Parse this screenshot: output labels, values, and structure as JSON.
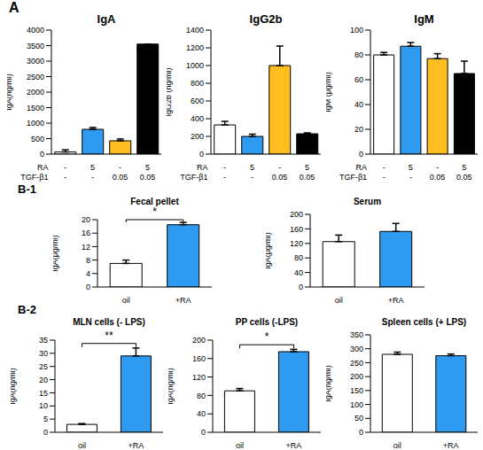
{
  "chart_data": [
    {
      "type": "bar",
      "panel": "A",
      "title": "IgA",
      "y_label": "IgA(ng/ml)",
      "x_rows": [
        {
          "label": "RA",
          "values": [
            "-",
            "5",
            "-",
            "5"
          ]
        },
        {
          "label": "TGF-β1",
          "values": [
            "-",
            "-",
            "0.05",
            "0.05"
          ]
        }
      ],
      "values": [
        70,
        800,
        430,
        3550
      ],
      "errors": [
        70,
        60,
        60,
        0
      ],
      "colors": [
        "#ffffff",
        "#2e9bf0",
        "#ffbe1f",
        "#000000"
      ],
      "ylim": [
        0,
        4000
      ],
      "yticks": [
        0,
        500,
        1000,
        1500,
        2000,
        2500,
        3000,
        3500,
        4000
      ]
    },
    {
      "type": "bar",
      "title": "IgG2b",
      "y_label": "IgG2b (ng/ml)",
      "x_rows": [
        {
          "label": "RA",
          "values": [
            "-",
            "5",
            "-",
            "5"
          ]
        },
        {
          "label": "TGF-β1",
          "values": [
            "-",
            "-",
            "0.05",
            "0.05"
          ]
        }
      ],
      "values": [
        330,
        200,
        1000,
        230
      ],
      "errors": [
        40,
        25,
        220,
        10
      ],
      "colors": [
        "#ffffff",
        "#2e9bf0",
        "#ffbe1f",
        "#000000"
      ],
      "ylim": [
        0,
        1400
      ],
      "yticks": [
        0,
        200,
        400,
        600,
        800,
        1000,
        1200,
        1400
      ]
    },
    {
      "type": "bar",
      "title": "IgM",
      "y_label": "IgM (μg/ml)",
      "x_rows": [
        {
          "label": "RA",
          "values": [
            "-",
            "5",
            "-",
            "5"
          ]
        },
        {
          "label": "TGF-β1",
          "values": [
            "-",
            "-",
            "0.05",
            "0.05"
          ]
        }
      ],
      "values": [
        80,
        87,
        77,
        65
      ],
      "errors": [
        2,
        3,
        4,
        10
      ],
      "colors": [
        "#ffffff",
        "#2e9bf0",
        "#ffbe1f",
        "#000000"
      ],
      "ylim": [
        0,
        100
      ],
      "yticks": [
        0,
        20,
        40,
        60,
        80,
        100
      ]
    },
    {
      "type": "bar",
      "panel": "B-1",
      "title": "Fecal pellet",
      "y_label": "IgA(μg/ml)",
      "categories": [
        "oil",
        "+RA"
      ],
      "values": [
        7,
        18.5
      ],
      "errors": [
        1,
        0.7
      ],
      "colors": [
        "#ffffff",
        "#2e9bf0"
      ],
      "ylim": [
        0,
        20
      ],
      "yticks": [
        0,
        4,
        8,
        12,
        16,
        20
      ],
      "annotations": [
        {
          "text": "*",
          "between": [
            "oil",
            "+RA"
          ]
        }
      ]
    },
    {
      "type": "bar",
      "title": "Serum",
      "y_label": "IgA(μg/ml)",
      "categories": [
        "oil",
        "+RA"
      ],
      "values": [
        125,
        153
      ],
      "errors": [
        18,
        22
      ],
      "colors": [
        "#ffffff",
        "#2e9bf0"
      ],
      "ylim": [
        0,
        200
      ],
      "yticks": [
        0,
        40,
        80,
        120,
        160,
        200
      ]
    },
    {
      "type": "bar",
      "panel": "B-2",
      "title": "MLN cells (- LPS)",
      "y_label": "IgA(ng/ml)",
      "categories": [
        "oil",
        "+RA"
      ],
      "values": [
        3,
        29
      ],
      "errors": [
        0.3,
        3
      ],
      "colors": [
        "#ffffff",
        "#2e9bf0"
      ],
      "ylim": [
        0,
        35
      ],
      "yticks": [
        0,
        5,
        10,
        15,
        20,
        25,
        30,
        35
      ],
      "annotations": [
        {
          "text": "**",
          "between": [
            "oil",
            "+RA"
          ]
        }
      ]
    },
    {
      "type": "bar",
      "title": "PP cells (-LPS)",
      "y_label": "IgA(ng/ml)",
      "categories": [
        "oil",
        "+RA"
      ],
      "values": [
        90,
        175
      ],
      "errors": [
        5,
        5
      ],
      "colors": [
        "#ffffff",
        "#2e9bf0"
      ],
      "ylim": [
        0,
        200
      ],
      "yticks": [
        0,
        40,
        80,
        120,
        160,
        200
      ],
      "annotations": [
        {
          "text": "*",
          "between": [
            "oil",
            "+RA"
          ]
        }
      ]
    },
    {
      "type": "bar",
      "title": "Spleen cells (+ LPS)",
      "y_label": "IgA(ng/ml)",
      "categories": [
        "oil",
        "+RA"
      ],
      "values": [
        280,
        275
      ],
      "errors": [
        8,
        6
      ],
      "colors": [
        "#ffffff",
        "#2e9bf0"
      ],
      "ylim": [
        0,
        350
      ],
      "yticks": [
        0,
        50,
        100,
        150,
        200,
        250,
        300,
        350
      ]
    }
  ]
}
